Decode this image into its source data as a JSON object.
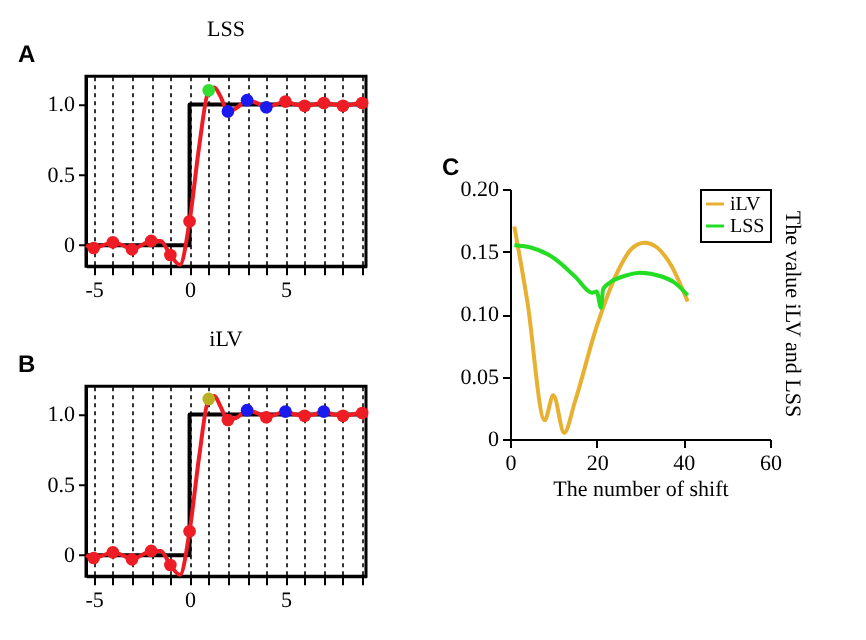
{
  "chart_data": [
    {
      "type": "line",
      "title": "LSS",
      "annotations": [
        "A"
      ],
      "xlim": [
        -5.4,
        9.2
      ],
      "ylim": [
        -0.15,
        1.2
      ],
      "xticks": [
        -5,
        {
          "value": -4,
          "label": null
        },
        {
          "value": -3,
          "label": null
        },
        {
          "value": -2,
          "label": null
        },
        {
          "value": -1,
          "label": null
        },
        0,
        {
          "value": 1,
          "label": null
        },
        {
          "value": 2,
          "label": null
        },
        {
          "value": 3,
          "label": null
        },
        {
          "value": 4,
          "label": null
        },
        5,
        {
          "value": 6,
          "label": null
        },
        {
          "value": 7,
          "label": null
        },
        {
          "value": 8,
          "label": null
        },
        {
          "value": 9,
          "label": null
        }
      ],
      "yticks": [
        0,
        0.5,
        {
          "value": 1,
          "label": "1.0"
        }
      ],
      "grid": "x",
      "series": [
        {
          "type": "step",
          "color": "#000000",
          "x": [
            -5.4,
            0,
            9.2
          ],
          "values": [
            0,
            1,
            1
          ]
        },
        {
          "type": "line",
          "color": "#ee1c24",
          "x": [
            -5.4,
            -5,
            -4.5,
            -4,
            -3.5,
            -3,
            -2.5,
            -2,
            -1.5,
            -1,
            -0.5,
            0,
            0.5,
            1,
            1.3,
            1.6,
            2,
            2.5,
            3,
            3.5,
            4,
            4.5,
            5,
            5.5,
            6,
            6.5,
            7,
            7.5,
            8,
            8.5,
            9,
            9.2
          ],
          "values": [
            0,
            -0.02,
            0,
            0.02,
            0,
            -0.03,
            0,
            0.03,
            0.03,
            -0.07,
            -0.14,
            0.17,
            0.7,
            1.1,
            1.12,
            1.06,
            0.95,
            0.98,
            1.03,
            1.01,
            0.98,
            1.0,
            1.02,
            1.0,
            0.99,
            1.0,
            1.01,
            1.0,
            0.99,
            1.0,
            1.01,
            1.0
          ]
        },
        {
          "type": "scatter",
          "marker": "circle",
          "x": [
            -5,
            -4,
            -3,
            -2,
            -1,
            0,
            1,
            2,
            3,
            4,
            5,
            6,
            7,
            8,
            9
          ],
          "values": [
            -0.02,
            0.02,
            -0.03,
            0.03,
            -0.07,
            0.17,
            1.1,
            0.95,
            1.03,
            0.98,
            1.02,
            0.99,
            1.01,
            0.99,
            1.01
          ],
          "colors": [
            "#ee1c24",
            "#ee1c24",
            "#ee1c24",
            "#ee1c24",
            "#ee1c24",
            "#ee1c24",
            "#33dd33",
            "#1a1aee",
            "#1a1aee",
            "#1a1aee",
            "#ee1c24",
            "#ee1c24",
            "#ee1c24",
            "#ee1c24",
            "#ee1c24"
          ]
        }
      ]
    },
    {
      "type": "line",
      "title": "iLV",
      "annotations": [
        "B"
      ],
      "xlim": [
        -5.4,
        9.2
      ],
      "ylim": [
        -0.15,
        1.2
      ],
      "xticks": [
        -5,
        {
          "value": -4,
          "label": null
        },
        {
          "value": -3,
          "label": null
        },
        {
          "value": -2,
          "label": null
        },
        {
          "value": -1,
          "label": null
        },
        0,
        {
          "value": 1,
          "label": null
        },
        {
          "value": 2,
          "label": null
        },
        {
          "value": 3,
          "label": null
        },
        {
          "value": 4,
          "label": null
        },
        5,
        {
          "value": 6,
          "label": null
        },
        {
          "value": 7,
          "label": null
        },
        {
          "value": 8,
          "label": null
        },
        {
          "value": 9,
          "label": null
        }
      ],
      "yticks": [
        0,
        0.5,
        {
          "value": 1,
          "label": "1.0"
        }
      ],
      "grid": "x",
      "series": [
        {
          "type": "step",
          "color": "#000000",
          "x": [
            -5.4,
            0,
            9.2
          ],
          "values": [
            0,
            1,
            1
          ]
        },
        {
          "type": "line",
          "color": "#ee1c24",
          "x": [
            -5.4,
            -5,
            -4.5,
            -4,
            -3.5,
            -3,
            -2.5,
            -2,
            -1.5,
            -1,
            -0.5,
            0,
            0.5,
            1,
            1.3,
            1.6,
            2,
            2.5,
            3,
            3.5,
            4,
            4.5,
            5,
            5.5,
            6,
            6.5,
            7,
            7.5,
            8,
            8.5,
            9,
            9.2
          ],
          "values": [
            0,
            -0.02,
            0,
            0.02,
            0,
            -0.03,
            0,
            0.03,
            0.03,
            -0.07,
            -0.14,
            0.17,
            0.7,
            1.11,
            1.13,
            1.06,
            0.96,
            0.98,
            1.03,
            1.01,
            0.98,
            1.0,
            1.02,
            1.0,
            0.99,
            1.0,
            1.02,
            1.0,
            0.99,
            1.0,
            1.01,
            1.0
          ]
        },
        {
          "type": "scatter",
          "marker": "circle",
          "x": [
            -5,
            -4,
            -3,
            -2,
            -1,
            0,
            1,
            2,
            3,
            4,
            5,
            6,
            7,
            8,
            9
          ],
          "values": [
            -0.02,
            0.02,
            -0.03,
            0.03,
            -0.07,
            0.17,
            1.11,
            0.96,
            1.03,
            0.98,
            1.02,
            0.99,
            1.02,
            0.99,
            1.01
          ],
          "colors": [
            "#ee1c24",
            "#ee1c24",
            "#ee1c24",
            "#ee1c24",
            "#ee1c24",
            "#ee1c24",
            "#b8b020",
            "#ee1c24",
            "#1a1aee",
            "#ee1c24",
            "#1a1aee",
            "#ee1c24",
            "#1a1aee",
            "#ee1c24",
            "#ee1c24"
          ]
        }
      ]
    },
    {
      "type": "line",
      "annotations": [
        "C"
      ],
      "xlabel": "The number of shift",
      "ylabel": "The value iLV and LSS",
      "xlim": [
        0,
        60
      ],
      "ylim": [
        0,
        0.2
      ],
      "xticks": [
        0,
        20,
        40,
        60
      ],
      "yticks": [
        0,
        0.05,
        {
          "value": 0.1,
          "label": "0.10"
        },
        0.15,
        {
          "value": 0.2,
          "label": "0.20"
        }
      ],
      "legend": "top right",
      "series": [
        {
          "name": "iLV",
          "color": "#e8b030",
          "x": [
            1,
            4,
            8,
            10,
            12.5,
            15,
            20,
            25,
            28,
            31,
            34,
            37,
            41
          ],
          "values": [
            0.17,
            0.11,
            0.015,
            0.035,
            0.005,
            0.03,
            0.09,
            0.135,
            0.152,
            0.157,
            0.153,
            0.14,
            0.11
          ]
        },
        {
          "name": "LSS",
          "color": "#22dd22",
          "x": [
            1,
            5,
            10,
            15,
            19,
            20,
            21,
            21.5,
            23,
            27,
            30,
            35,
            38,
            41
          ],
          "values": [
            0.155,
            0.153,
            0.145,
            0.13,
            0.117,
            0.118,
            0.105,
            0.12,
            0.125,
            0.131,
            0.133,
            0.13,
            0.125,
            0.115
          ]
        }
      ]
    }
  ]
}
